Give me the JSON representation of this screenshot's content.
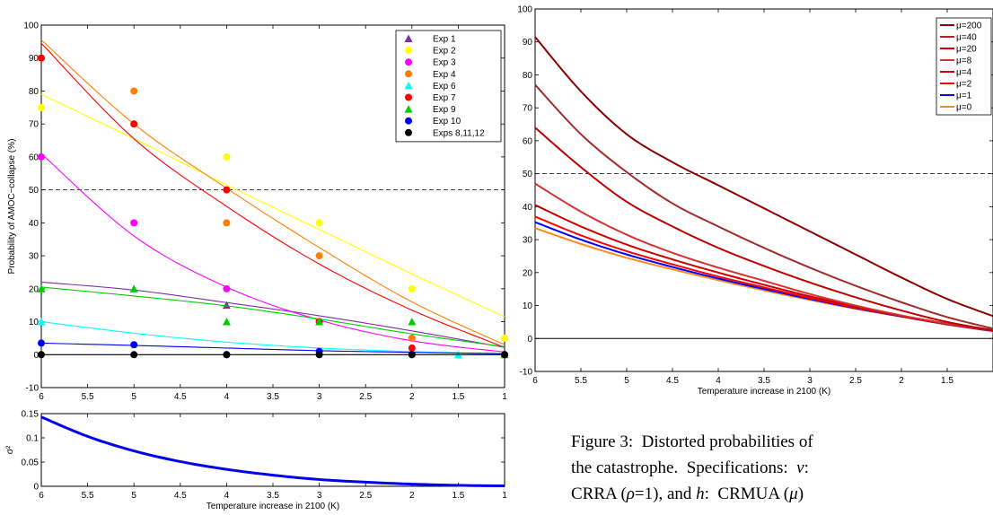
{
  "chart_data": [
    {
      "type": "scatter",
      "xlabel": "",
      "ylabel": "Probability of AMOC−collapse (%)",
      "xlim": [
        6,
        1
      ],
      "ylim": [
        -10,
        100
      ],
      "x_ticks": [
        "6",
        "5.5",
        "5",
        "4.5",
        "4",
        "3.5",
        "3",
        "2.5",
        "2",
        "1.5",
        "1"
      ],
      "y_ticks": [
        "-10",
        "0",
        "10",
        "20",
        "30",
        "40",
        "50",
        "60",
        "70",
        "80",
        "90",
        "100"
      ],
      "reference_line": 50,
      "legend_position": "top-right",
      "series": [
        {
          "name": "Exp 1",
          "marker": "triangle",
          "color": "#7b2fa8",
          "points": [
            [
              4,
              15
            ]
          ],
          "fit": [
            [
              6,
              22
            ],
            [
              5,
              19.6
            ],
            [
              4,
              15.8
            ],
            [
              3,
              11.8
            ],
            [
              2,
              7.2
            ],
            [
              1,
              2.2
            ]
          ]
        },
        {
          "name": "Exp 2",
          "marker": "circle",
          "color": "#ffff00",
          "points": [
            [
              6,
              75
            ],
            [
              5,
              70
            ],
            [
              4,
              60
            ],
            [
              3,
              40
            ],
            [
              2,
              20
            ],
            [
              1,
              5
            ]
          ],
          "fit": [
            [
              6,
              79
            ],
            [
              5,
              65.5
            ],
            [
              4,
              51.5
            ],
            [
              3,
              38
            ],
            [
              2,
              24.5
            ],
            [
              1,
              11.5
            ]
          ]
        },
        {
          "name": "Exp 3",
          "marker": "circle",
          "color": "#ff00ff",
          "points": [
            [
              6,
              60
            ],
            [
              5,
              40
            ],
            [
              4,
              20
            ],
            [
              3,
              10
            ],
            [
              2,
              5
            ],
            [
              1,
              0
            ]
          ],
          "fit": [
            [
              6,
              61
            ],
            [
              5,
              36
            ],
            [
              4,
              20.5
            ],
            [
              3,
              10.5
            ],
            [
              2,
              4.2
            ],
            [
              1,
              0.8
            ]
          ]
        },
        {
          "name": "Exp 4",
          "marker": "circle",
          "color": "#ff7f00",
          "points": [
            [
              6,
              90
            ],
            [
              5,
              80
            ],
            [
              4,
              40
            ],
            [
              3,
              30
            ],
            [
              2,
              5
            ],
            [
              1,
              0
            ]
          ],
          "fit": [
            [
              6,
              95.5
            ],
            [
              5,
              70
            ],
            [
              4,
              50.5
            ],
            [
              3,
              32.5
            ],
            [
              2,
              16
            ],
            [
              1,
              3
            ]
          ]
        },
        {
          "name": "Exp 6",
          "marker": "triangle",
          "color": "#00ffff",
          "points": [
            [
              6,
              10
            ],
            [
              1.5,
              0
            ]
          ],
          "fit": [
            [
              6,
              10
            ],
            [
              5,
              6.5
            ],
            [
              4,
              3.8
            ],
            [
              3,
              2
            ],
            [
              2,
              0.9
            ],
            [
              1,
              0.2
            ]
          ]
        },
        {
          "name": "Exp 7",
          "marker": "circle",
          "color": "#ff0000",
          "points": [
            [
              6,
              90
            ],
            [
              5,
              70
            ],
            [
              4,
              50
            ],
            [
              3,
              10
            ],
            [
              2,
              2
            ],
            [
              1,
              0
            ]
          ],
          "fit": [
            [
              6,
              94.5
            ],
            [
              5,
              65.5
            ],
            [
              4,
              45
            ],
            [
              3,
              27.5
            ],
            [
              2,
              13.5
            ],
            [
              1,
              2.2
            ]
          ]
        },
        {
          "name": "Exp 9",
          "marker": "triangle",
          "color": "#00cc00",
          "points": [
            [
              6,
              20
            ],
            [
              5,
              20
            ],
            [
              4,
              10
            ],
            [
              3,
              10
            ],
            [
              2,
              10
            ],
            [
              1,
              0
            ]
          ],
          "fit": [
            [
              6,
              20.5
            ],
            [
              5,
              17.8
            ],
            [
              4,
              14.8
            ],
            [
              3,
              10.8
            ],
            [
              2,
              6.3
            ],
            [
              1,
              2.4
            ]
          ]
        },
        {
          "name": "Exp 10",
          "marker": "circle",
          "color": "#0000ff",
          "points": [
            [
              6,
              3.5
            ],
            [
              5,
              3
            ],
            [
              4,
              0
            ],
            [
              3,
              1
            ],
            [
              2,
              0
            ],
            [
              1,
              0
            ]
          ],
          "fit": [
            [
              6,
              3.5
            ],
            [
              5,
              2.8
            ],
            [
              4,
              2
            ],
            [
              3,
              1.2
            ],
            [
              2,
              0.7
            ],
            [
              1,
              0.3
            ]
          ]
        },
        {
          "name": "Exps 8,11,12",
          "marker": "circle",
          "color": "#000000",
          "points": [
            [
              6,
              0
            ],
            [
              5,
              0
            ],
            [
              4,
              0
            ],
            [
              3,
              0
            ],
            [
              2,
              0
            ],
            [
              1,
              0
            ]
          ],
          "fit": [
            [
              6,
              0
            ],
            [
              1,
              0
            ]
          ]
        }
      ]
    },
    {
      "type": "line",
      "xlabel": "Temperature increase in 2100 (K)",
      "ylabel": "σ²",
      "xlim": [
        6,
        1
      ],
      "ylim": [
        0,
        0.15
      ],
      "x_ticks": [
        "6",
        "5.5",
        "5",
        "4.5",
        "4",
        "3.5",
        "3",
        "2.5",
        "2",
        "1.5",
        "1"
      ],
      "y_ticks": [
        "0",
        "0.05",
        "0.1",
        "0.15"
      ],
      "series": [
        {
          "color": "#0000ee",
          "points": [
            [
              6,
              0.143
            ],
            [
              5.5,
              0.103
            ],
            [
              5,
              0.073
            ],
            [
              4.5,
              0.051
            ],
            [
              4,
              0.035
            ],
            [
              3.5,
              0.023
            ],
            [
              3,
              0.014
            ],
            [
              2.5,
              0.0085
            ],
            [
              2,
              0.0045
            ],
            [
              1.5,
              0.002
            ],
            [
              1,
              0.0008
            ]
          ]
        }
      ]
    },
    {
      "type": "line",
      "xlabel": "Temperature increase in 2100 (K)",
      "ylabel": "",
      "xlim": [
        6,
        1
      ],
      "ylim": [
        -10,
        100
      ],
      "x_ticks": [
        "6",
        "5.5",
        "5",
        "4.5",
        "4",
        "3.5",
        "3",
        "2.5",
        "2",
        "1.5"
      ],
      "y_ticks": [
        "-10",
        "0",
        "10",
        "20",
        "30",
        "40",
        "50",
        "60",
        "70",
        "80",
        "90",
        "100"
      ],
      "reference_line": 50,
      "legend_position": "top-right",
      "series": [
        {
          "name": "μ=200",
          "color": "#8b0000",
          "points": [
            [
              6,
              91.5
            ],
            [
              5.5,
              75
            ],
            [
              5,
              62
            ],
            [
              4.5,
              53.5
            ],
            [
              4,
              46.5
            ],
            [
              3.5,
              39.5
            ],
            [
              3,
              32.5
            ],
            [
              2.5,
              25.5
            ],
            [
              2,
              18.5
            ],
            [
              1.5,
              12
            ],
            [
              1,
              6.8
            ]
          ]
        },
        {
          "name": "μ=40",
          "color": "#a52a2a",
          "points": [
            [
              6,
              77
            ],
            [
              5.5,
              62
            ],
            [
              5,
              50.5
            ],
            [
              4.5,
              41
            ],
            [
              4,
              34
            ],
            [
              3.5,
              27.5
            ],
            [
              3,
              21.5
            ],
            [
              2.5,
              16
            ],
            [
              2,
              11
            ],
            [
              1.5,
              6.5
            ],
            [
              1,
              3
            ]
          ]
        },
        {
          "name": "μ=20",
          "color": "#c00000",
          "points": [
            [
              6,
              64
            ],
            [
              5.5,
              52
            ],
            [
              5,
              41.5
            ],
            [
              4.5,
              34
            ],
            [
              4,
              27.5
            ],
            [
              3.5,
              22
            ],
            [
              3,
              17
            ],
            [
              2.5,
              12.5
            ],
            [
              2,
              8.5
            ],
            [
              1.5,
              5
            ],
            [
              1,
              2.5
            ]
          ]
        },
        {
          "name": "μ=8",
          "color": "#d93030",
          "points": [
            [
              6,
              47
            ],
            [
              5.5,
              38.5
            ],
            [
              5,
              31.5
            ],
            [
              4.5,
              26
            ],
            [
              4,
              21.5
            ],
            [
              3.5,
              17.5
            ],
            [
              3,
              13.5
            ],
            [
              2.5,
              10
            ],
            [
              2,
              7
            ],
            [
              1.5,
              4.5
            ],
            [
              1,
              2.5
            ]
          ]
        },
        {
          "name": "μ=4",
          "color": "#cc0000",
          "points": [
            [
              6,
              40.5
            ],
            [
              5.5,
              34
            ],
            [
              5,
              28.5
            ],
            [
              4.5,
              24
            ],
            [
              4,
              20
            ],
            [
              3.5,
              16.3
            ],
            [
              3,
              12.8
            ],
            [
              2.5,
              9.7
            ],
            [
              2,
              6.9
            ],
            [
              1.5,
              4.5
            ],
            [
              1,
              2.5
            ]
          ]
        },
        {
          "name": "μ=2",
          "color": "#ff0000",
          "points": [
            [
              6,
              37
            ],
            [
              5.5,
              31.3
            ],
            [
              5,
              26.5
            ],
            [
              4.5,
              22.5
            ],
            [
              4,
              18.8
            ],
            [
              3.5,
              15.5
            ],
            [
              3,
              12.3
            ],
            [
              2.5,
              9.4
            ],
            [
              2,
              6.8
            ],
            [
              1.5,
              4.4
            ],
            [
              1,
              2.4
            ]
          ]
        },
        {
          "name": "μ=1",
          "color": "#0000ff",
          "points": [
            [
              6,
              35.3
            ],
            [
              5.5,
              30
            ],
            [
              5,
              25.5
            ],
            [
              4.5,
              21.7
            ],
            [
              4,
              18.2
            ],
            [
              3.5,
              15
            ],
            [
              3,
              12
            ],
            [
              2.5,
              9.2
            ],
            [
              2,
              6.7
            ],
            [
              1.5,
              4.3
            ],
            [
              1,
              2.3
            ]
          ]
        },
        {
          "name": "μ=0",
          "color": "#ff8c1a",
          "points": [
            [
              6,
              33.5
            ],
            [
              5.5,
              28.7
            ],
            [
              5,
              24.5
            ],
            [
              4.5,
              21
            ],
            [
              4,
              17.7
            ],
            [
              3.5,
              14.6
            ],
            [
              3,
              11.7
            ],
            [
              2.5,
              9
            ],
            [
              2,
              6.6
            ],
            [
              1.5,
              4.2
            ],
            [
              1,
              2.2
            ]
          ]
        }
      ]
    }
  ],
  "caption": {
    "line1": "Figure 3:  Distorted probabilities of",
    "line2": "the catastrophe.  Specifications:  ",
    "v": "v",
    "line2b": ":",
    "line3a": "CRRA (",
    "rho": "ρ",
    "line3b": "=1), and ",
    "h": "h",
    "line3c": ":  CRMUA (",
    "mu": "μ",
    "line3d": ")"
  }
}
